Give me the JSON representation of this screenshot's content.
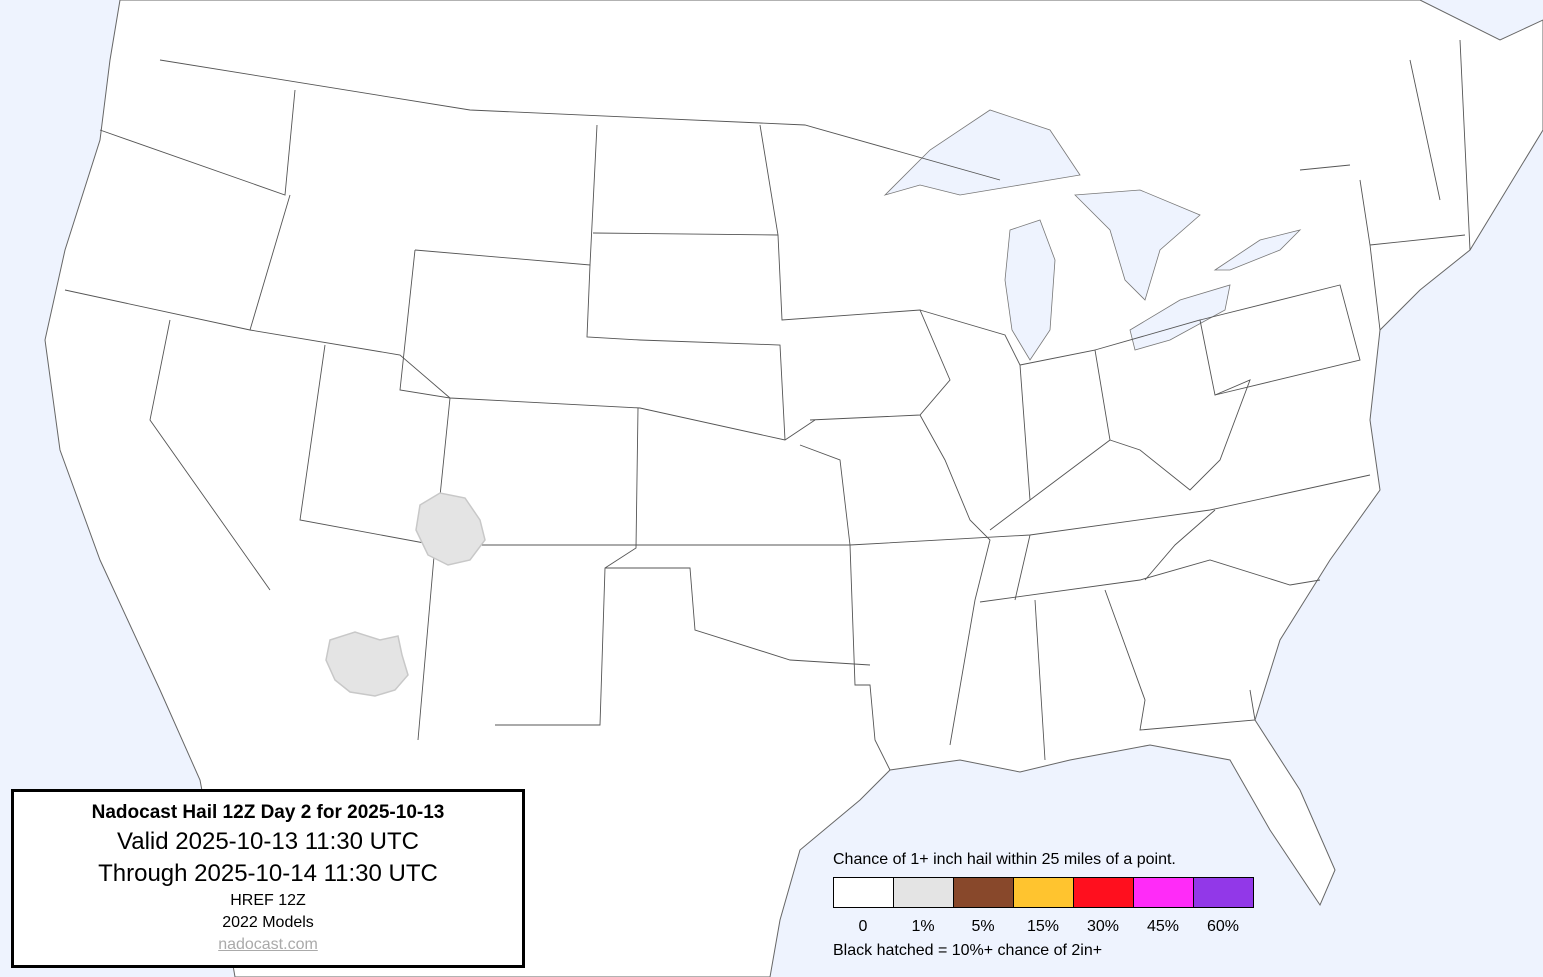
{
  "info_box": {
    "title": "Nadocast Hail 12Z Day 2 for 2025-10-13",
    "valid": "Valid 2025-10-13 11:30 UTC",
    "through": "Through 2025-10-14 11:30 UTC",
    "model": "HREF 12Z",
    "models_year": "2022 Models",
    "link": "nadocast.com"
  },
  "legend": {
    "title": "Chance of 1+ inch hail within 25 miles of a point.",
    "bins": [
      {
        "label": "0",
        "color": "#ffffff"
      },
      {
        "label": "1%",
        "color": "#e4e4e4"
      },
      {
        "label": "5%",
        "color": "#88482b"
      },
      {
        "label": "15%",
        "color": "#ffc42f"
      },
      {
        "label": "30%",
        "color": "#ff0f1e"
      },
      {
        "label": "45%",
        "color": "#ff2bf8"
      },
      {
        "label": "60%",
        "color": "#9238e8"
      }
    ],
    "note": "Black hatched = 10%+ chance of 2in+"
  },
  "map": {
    "ocean_color": "#eef3fe",
    "land_color": "#ffffff",
    "forecast_areas": [
      {
        "region": "four-corners",
        "category": "1%"
      },
      {
        "region": "central-arizona",
        "category": "1%"
      }
    ]
  }
}
